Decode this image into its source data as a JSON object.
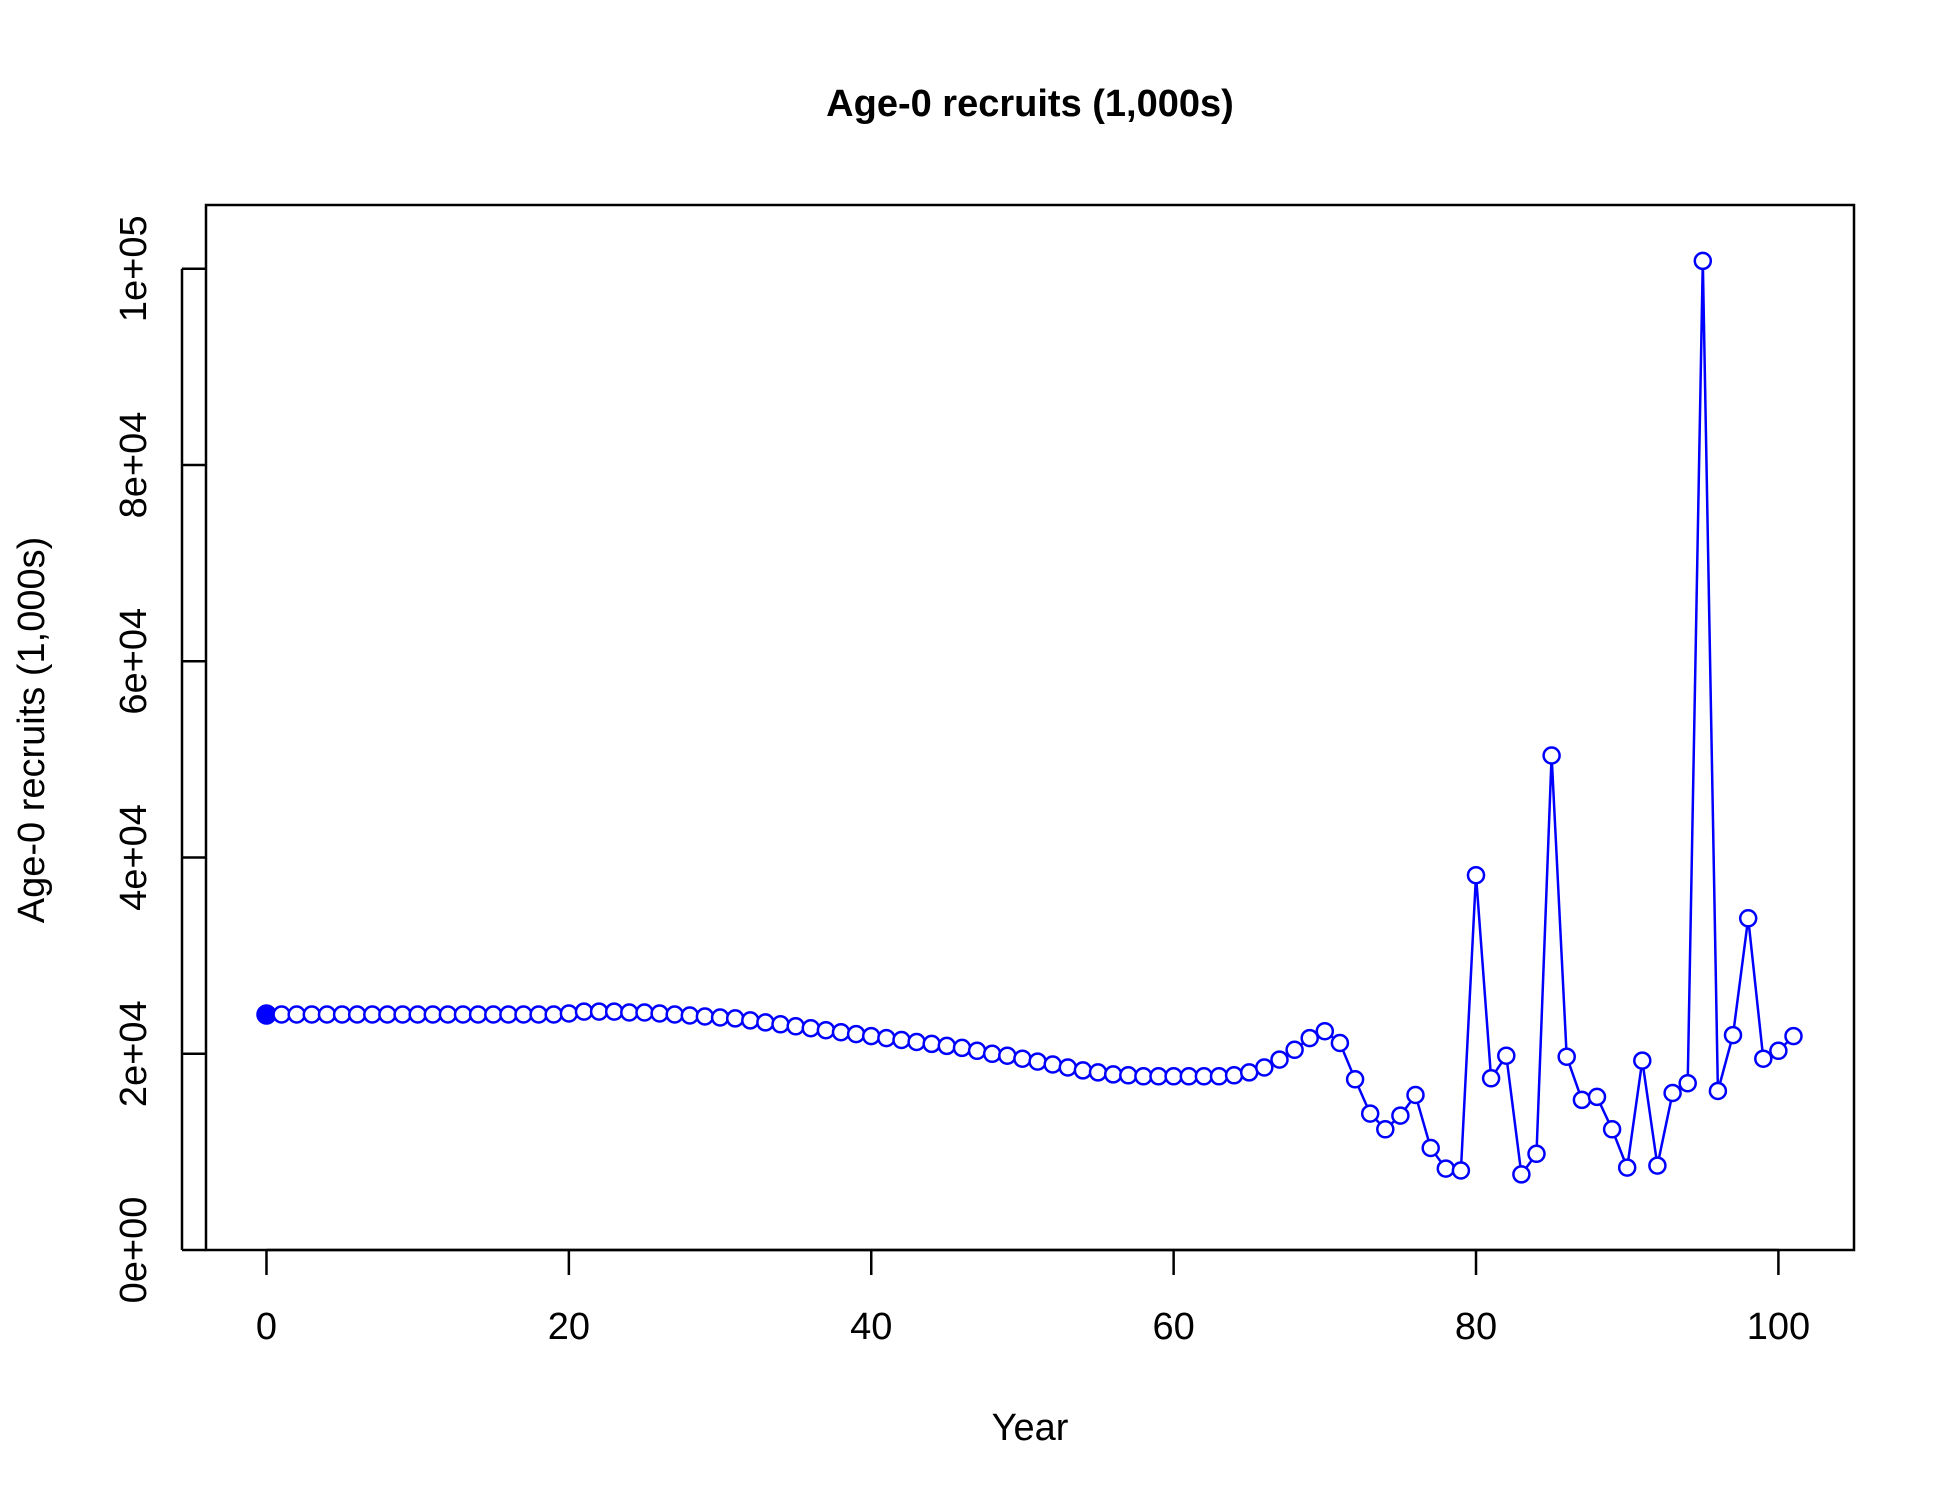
{
  "chart_data": {
    "type": "line",
    "title": "Age-0 recruits (1,000s)",
    "xlabel": "Year",
    "ylabel": "Age-0 recruits (1,000s)",
    "xlim": [
      -4,
      105
    ],
    "ylim": [
      0,
      106500
    ],
    "x_ticks": [
      0,
      20,
      40,
      60,
      80,
      100
    ],
    "x_tick_labels": [
      "0",
      "20",
      "40",
      "60",
      "80",
      "100"
    ],
    "y_ticks": [
      0,
      20000,
      40000,
      60000,
      80000,
      100000
    ],
    "y_tick_labels": [
      "0e+00",
      "2e+04",
      "4e+04",
      "6e+04",
      "8e+04",
      "1e+05"
    ],
    "grid": false,
    "legend": "none",
    "series": [
      {
        "color": "#0000ff",
        "marker": "open-circle",
        "first_point_filled": true,
        "x": [
          0,
          1,
          2,
          3,
          4,
          5,
          6,
          7,
          8,
          9,
          10,
          11,
          12,
          13,
          14,
          15,
          16,
          17,
          18,
          19,
          20,
          21,
          22,
          23,
          24,
          25,
          26,
          27,
          28,
          29,
          30,
          31,
          32,
          33,
          34,
          35,
          36,
          37,
          38,
          39,
          40,
          41,
          42,
          43,
          44,
          45,
          46,
          47,
          48,
          49,
          50,
          51,
          52,
          53,
          54,
          55,
          56,
          57,
          58,
          59,
          60,
          61,
          62,
          63,
          64,
          65,
          66,
          67,
          68,
          69,
          70,
          71,
          72,
          73,
          74,
          75,
          76,
          77,
          78,
          79,
          80,
          81,
          82,
          83,
          84,
          85,
          86,
          87,
          88,
          89,
          90,
          91,
          92,
          93,
          94,
          95,
          96,
          97,
          98,
          99,
          100,
          101
        ],
        "values": [
          24000,
          24000,
          24000,
          24000,
          24000,
          24000,
          24000,
          24000,
          24000,
          24000,
          24000,
          24000,
          24000,
          24000,
          24000,
          24000,
          24000,
          24000,
          24000,
          24000,
          24100,
          24300,
          24300,
          24300,
          24200,
          24200,
          24100,
          24000,
          23900,
          23800,
          23700,
          23600,
          23400,
          23200,
          23000,
          22800,
          22600,
          22400,
          22200,
          22000,
          21800,
          21600,
          21400,
          21200,
          21000,
          20800,
          20600,
          20300,
          20000,
          19800,
          19500,
          19200,
          18900,
          18600,
          18300,
          18100,
          17900,
          17800,
          17700,
          17700,
          17700,
          17700,
          17700,
          17700,
          17800,
          18100,
          18600,
          19400,
          20400,
          21600,
          22300,
          21100,
          17400,
          13900,
          12300,
          13700,
          15800,
          10400,
          8300,
          8100,
          38200,
          17500,
          19800,
          7700,
          9800,
          50400,
          19700,
          15300,
          15600,
          12300,
          8400,
          19300,
          8600,
          16000,
          17000,
          100800,
          16200,
          21900,
          33800,
          19500,
          20300,
          21800
        ]
      }
    ]
  }
}
